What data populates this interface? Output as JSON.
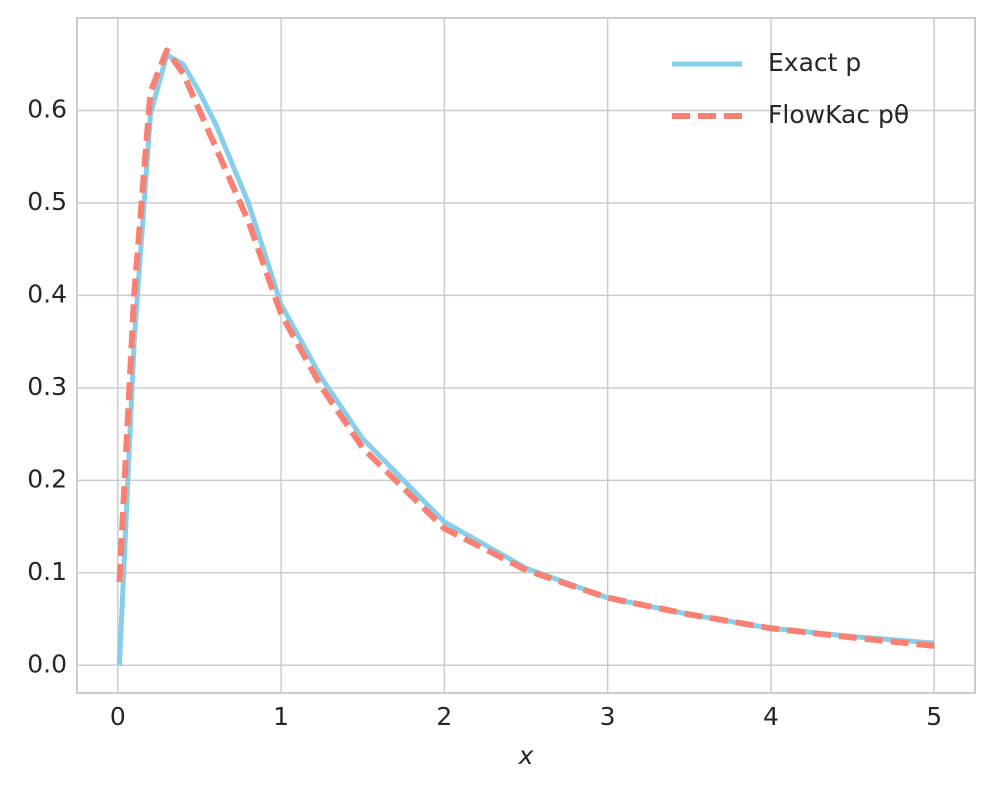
{
  "chart_data": {
    "type": "line",
    "xlabel": "x",
    "x": [
      0.01,
      0.1,
      0.2,
      0.3,
      0.4,
      0.5,
      0.6,
      0.8,
      1.0,
      1.25,
      1.5,
      2.0,
      2.5,
      3.0,
      3.5,
      4.0,
      4.5,
      5.0
    ],
    "series": [
      {
        "name": "Exact p",
        "color": "#87ceeb",
        "dash": false,
        "values": [
          0.0,
          0.35,
          0.596,
          0.66,
          0.65,
          0.62,
          0.585,
          0.5,
          0.39,
          0.31,
          0.245,
          0.155,
          0.105,
          0.073,
          0.055,
          0.04,
          0.031,
          0.024
        ]
      },
      {
        "name": "FlowKac pθ",
        "color": "#fa8072",
        "dash": true,
        "values": [
          0.09,
          0.4,
          0.62,
          0.665,
          0.64,
          0.6,
          0.56,
          0.48,
          0.38,
          0.3,
          0.235,
          0.148,
          0.103,
          0.073,
          0.055,
          0.04,
          0.03,
          0.021
        ]
      }
    ],
    "xlim": [
      -0.25,
      5.25
    ],
    "ylim": [
      -0.03,
      0.7
    ],
    "xticks": [
      0,
      1,
      2,
      3,
      4,
      5
    ],
    "yticks": [
      {
        "value": 0,
        "label": "0.0"
      },
      0.1,
      0.2,
      0.3,
      0.4,
      0.5,
      0.6
    ],
    "grid": true,
    "legend": "upper right"
  }
}
